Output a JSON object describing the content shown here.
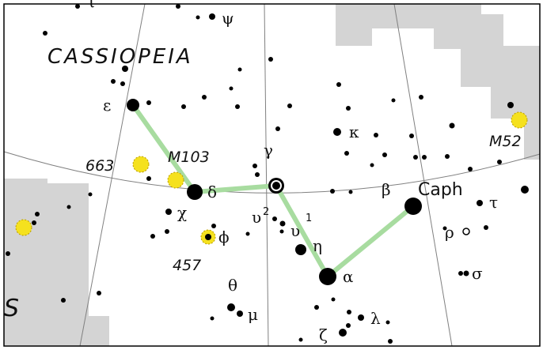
{
  "constellation": "CASSIOPEIA",
  "neighbor_fragment": "S",
  "colors": {
    "background": "#ffffff",
    "neighbor_region": "#d4d4d4",
    "stick_figure": "#a8dca0",
    "star": "#000000",
    "deep_sky_object": "#f5e11e",
    "grid": "#808080"
  },
  "stars": {
    "epsilon": "ε",
    "delta": "δ",
    "gamma": "γ",
    "eta": "η",
    "alpha": "α",
    "beta": "β",
    "beta_name": "Caph",
    "kappa": "κ",
    "psi": "ψ",
    "chi": "χ",
    "phi": "ϕ",
    "theta": "θ",
    "mu": "μ",
    "lambda": "λ",
    "zeta": "ζ",
    "tau": "τ",
    "rho": "ρ",
    "sigma": "σ",
    "iota": "ι",
    "upsilon": "υ",
    "upsilon1_index": "1",
    "upsilon2_index": "2"
  },
  "deep_sky": {
    "m52": "M52",
    "m103": "M103",
    "ngc663": "663",
    "ngc457": "457"
  }
}
